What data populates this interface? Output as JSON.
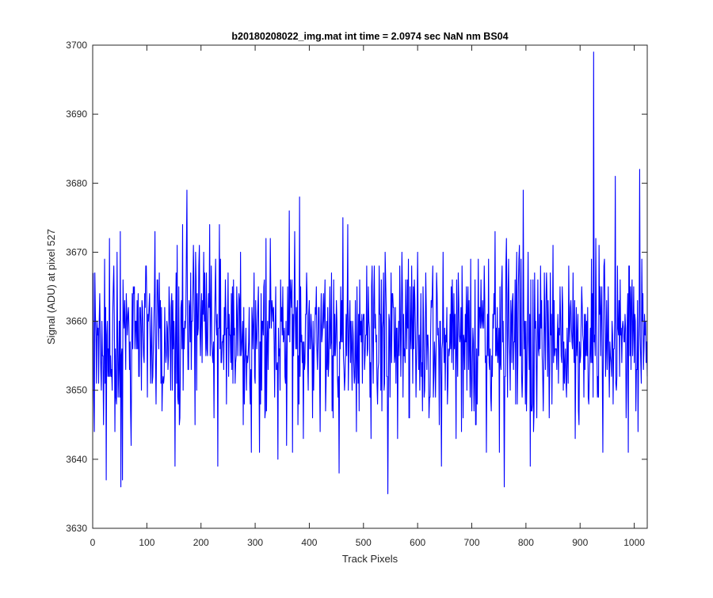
{
  "chart_data": {
    "type": "line",
    "title": "b20180208022_img.mat int time = 2.0974 sec  NaN nm BS04",
    "xlabel": "Track Pixels",
    "ylabel": "Signal (ADU) at pixel 527",
    "xlim": [
      0,
      1024
    ],
    "ylim": [
      3630,
      3700
    ],
    "xticks": [
      0,
      100,
      200,
      300,
      400,
      500,
      600,
      700,
      800,
      900,
      1000
    ],
    "yticks": [
      3630,
      3640,
      3650,
      3660,
      3670,
      3680,
      3690,
      3700
    ],
    "grid": false,
    "legend": "none",
    "series": [
      {
        "color": "#0000ff",
        "x_start": 1,
        "x_step": 1,
        "mean": 3657.5,
        "noise_sd": 6.5,
        "y_min_visible": 3635,
        "y_max_visible": 3699,
        "notable_points": [
          {
            "x": 25,
            "y": 3637
          },
          {
            "x": 52,
            "y": 3636
          },
          {
            "x": 55,
            "y": 3637
          },
          {
            "x": 174,
            "y": 3679
          },
          {
            "x": 382,
            "y": 3678
          },
          {
            "x": 455,
            "y": 3638
          },
          {
            "x": 545,
            "y": 3635
          },
          {
            "x": 760,
            "y": 3636
          },
          {
            "x": 795,
            "y": 3679
          },
          {
            "x": 925,
            "y": 3699
          },
          {
            "x": 965,
            "y": 3681
          },
          {
            "x": 1010,
            "y": 3682
          }
        ]
      }
    ]
  }
}
